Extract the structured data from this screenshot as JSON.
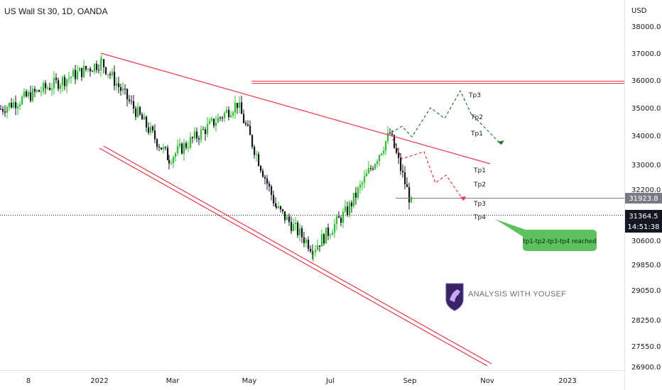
{
  "header": {
    "title": "US Wall St 30, 1D, OANDA"
  },
  "price_axis": {
    "currency": "USD",
    "ticks": [
      "38000.0",
      "37000.0",
      "36000.0",
      "35000.0",
      "34000.0",
      "33000.0",
      "32200.0",
      "30600.0",
      "29850.0",
      "29050.0",
      "28250.0",
      "27550.0",
      "26900.0"
    ],
    "line_label": "31923.8",
    "last_price": "31364.5",
    "countdown": "14:51:38"
  },
  "time_axis": {
    "ticks": [
      "8",
      "2022",
      "Mar",
      "May",
      "Jul",
      "Sep",
      "Nov",
      "2023"
    ]
  },
  "watermark": {
    "text": "ANALYSIS WITH YOUSEF"
  },
  "colors": {
    "up": "#26c726",
    "down": "#131722",
    "trendline": "#f23645",
    "projection_up": "#1e7d2d",
    "label_green": "#4caf50",
    "axis_text": "#131722"
  },
  "annotations": {
    "up_targets": [
      "Tp3",
      "Tp2",
      "Tp1"
    ],
    "down_targets": [
      "Tp1",
      "Tp2",
      "Tp3",
      "Tp4"
    ],
    "callout": "tp1-tp2-tp3-tp4 reached"
  },
  "chart_data": {
    "type": "candlestick",
    "symbol": "US Wall St 30",
    "interval": "1D",
    "currency": "USD",
    "x_ticks": [
      "8",
      "2022",
      "Mar",
      "May",
      "Jul",
      "Sep",
      "Nov",
      "2023"
    ],
    "close_path": [
      {
        "x": "8",
        "y": 35000
      },
      {
        "x": "2022",
        "y": 36700
      },
      {
        "x": "Mar",
        "y": 33200
      },
      {
        "x": "May",
        "y": 35200
      },
      {
        "x": "May",
        "y": 31400
      },
      {
        "x": "Jul",
        "y": 29900
      },
      {
        "x": "Jul",
        "y": 31300
      },
      {
        "x": "Sep",
        "y": 34100
      },
      {
        "x": "Sep",
        "y": 31364.5
      }
    ],
    "horizontal_levels": [
      35900,
      31923.8,
      31364.5
    ],
    "last_price": 31364.5
  }
}
